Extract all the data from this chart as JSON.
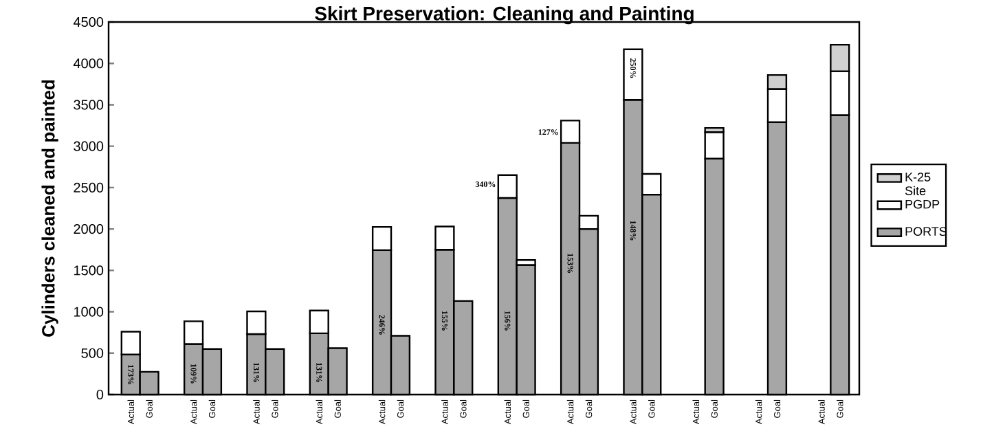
{
  "chart_data": {
    "type": "bar",
    "title": "Skirt Preservation: Cleaning and Painting",
    "ylabel": "Cylinders cleaned and painted",
    "categories": [
      "Actual",
      "Goal",
      "Actual",
      "Goal",
      "Actual",
      "Goal",
      "Actual",
      "Goal",
      "Actual",
      "Goal",
      "Actual",
      "Goal",
      "Actual",
      "Goal",
      "Actual",
      "Goal",
      "Actual",
      "Goal",
      "Actual",
      "Goal",
      "Actual",
      "Goal",
      "Actual",
      "Goal"
    ],
    "stacked": true,
    "series": [
      {
        "name": "PORTS",
        "color": "#a6a6a6",
        "values": [
          485,
          275,
          610,
          550,
          730,
          550,
          740,
          560,
          1745,
          710,
          1750,
          1130,
          2375,
          1565,
          3040,
          2000,
          3560,
          2415,
          null,
          2850,
          null,
          3290,
          null,
          3375
        ]
      },
      {
        "name": "PGDP",
        "color": "#ffffff",
        "values": [
          275,
          null,
          275,
          null,
          275,
          null,
          275,
          null,
          280,
          null,
          280,
          null,
          275,
          60,
          270,
          160,
          610,
          250,
          null,
          320,
          null,
          400,
          null,
          530
        ]
      },
      {
        "name": "K-25 Site",
        "color": "#d0d0d0",
        "values": [
          null,
          null,
          null,
          null,
          null,
          null,
          null,
          null,
          null,
          null,
          null,
          null,
          null,
          null,
          null,
          null,
          null,
          null,
          null,
          50,
          null,
          170,
          null,
          320
        ]
      }
    ],
    "ylim": [
      0,
      4500
    ],
    "yticks": [
      0,
      500,
      1000,
      1500,
      2000,
      2500,
      3000,
      3500,
      4000,
      4500
    ],
    "annotations": [
      "173%",
      "109%",
      "131%",
      "131%",
      "246%",
      "155%",
      "156%",
      "340%",
      "153%",
      "127%",
      "148%",
      "250%"
    ],
    "legend": "right"
  }
}
